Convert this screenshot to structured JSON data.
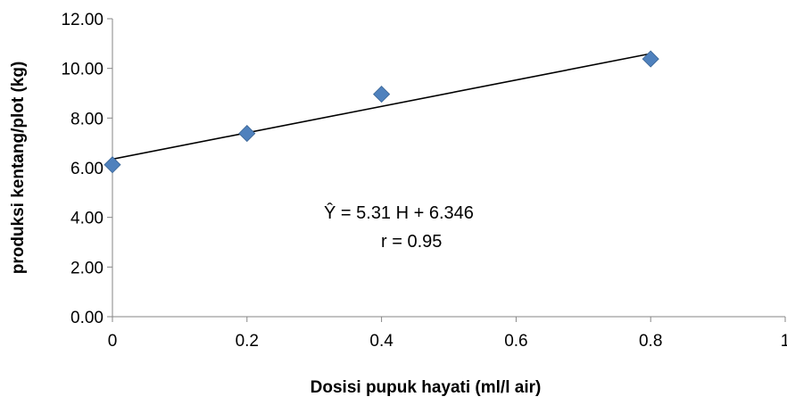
{
  "chart_data": {
    "type": "scatter",
    "xlabel": "Dosisi pupuk hayati (ml/l air)",
    "ylabel": "produksi kentang/plot (kg)",
    "xlim": [
      0,
      1
    ],
    "ylim": [
      0,
      12
    ],
    "x_ticks": [
      "0",
      "0.2",
      "0.4",
      "0.6",
      "0.8",
      "1"
    ],
    "y_ticks": [
      "0.00",
      "2.00",
      "4.00",
      "6.00",
      "8.00",
      "10.00",
      "12.00"
    ],
    "grid": false,
    "legend": "none",
    "series": [
      {
        "marker": "diamond",
        "color": "#4f81bd",
        "points": [
          {
            "x": 0,
            "y": 6.12
          },
          {
            "x": 0.2,
            "y": 7.38
          },
          {
            "x": 0.4,
            "y": 8.96
          },
          {
            "x": 0.8,
            "y": 10.38
          }
        ]
      }
    ],
    "trendline": {
      "slope": 5.31,
      "intercept": 6.346,
      "x_from": 0,
      "x_to": 0.8,
      "color": "#000000"
    },
    "annotations": [
      "Ŷ  = 5.31  H + 6.346",
      "r = 0.95"
    ]
  }
}
